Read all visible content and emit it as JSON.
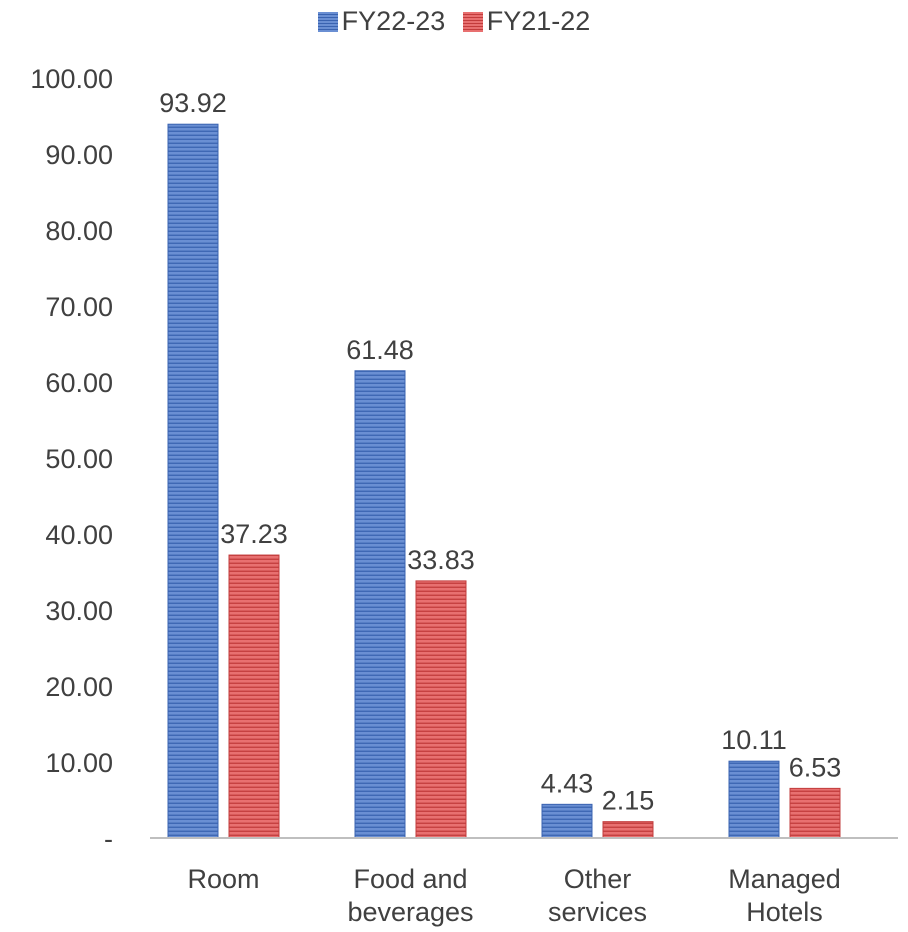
{
  "chart_data": {
    "type": "bar",
    "categories": [
      "Room",
      "Food and beverages",
      "Other services",
      "Managed Hotels"
    ],
    "category_lines": [
      [
        "Room"
      ],
      [
        "Food and",
        "beverages"
      ],
      [
        "Other",
        "services"
      ],
      [
        "Managed",
        "Hotels"
      ]
    ],
    "series": [
      {
        "name": "FY22-23",
        "values": [
          93.92,
          61.48,
          4.43,
          10.11
        ],
        "labels": [
          "93.92",
          "61.48",
          "4.43",
          "10.11"
        ],
        "color": "#4472C4"
      },
      {
        "name": "FY21-22",
        "values": [
          37.23,
          33.83,
          2.15,
          6.53
        ],
        "labels": [
          "37.23",
          "33.83",
          "2.15",
          "6.53"
        ],
        "color": "#E05555"
      }
    ],
    "ylim": [
      0,
      100
    ],
    "yticks": [
      0,
      10,
      20,
      30,
      40,
      50,
      60,
      70,
      80,
      90,
      100
    ],
    "ytick_labels": [
      "-",
      "10.00",
      "20.00",
      "30.00",
      "40.00",
      "50.00",
      "60.00",
      "70.00",
      "80.00",
      "90.00",
      "100.00"
    ],
    "legend_position": "top-center",
    "grid": false
  }
}
